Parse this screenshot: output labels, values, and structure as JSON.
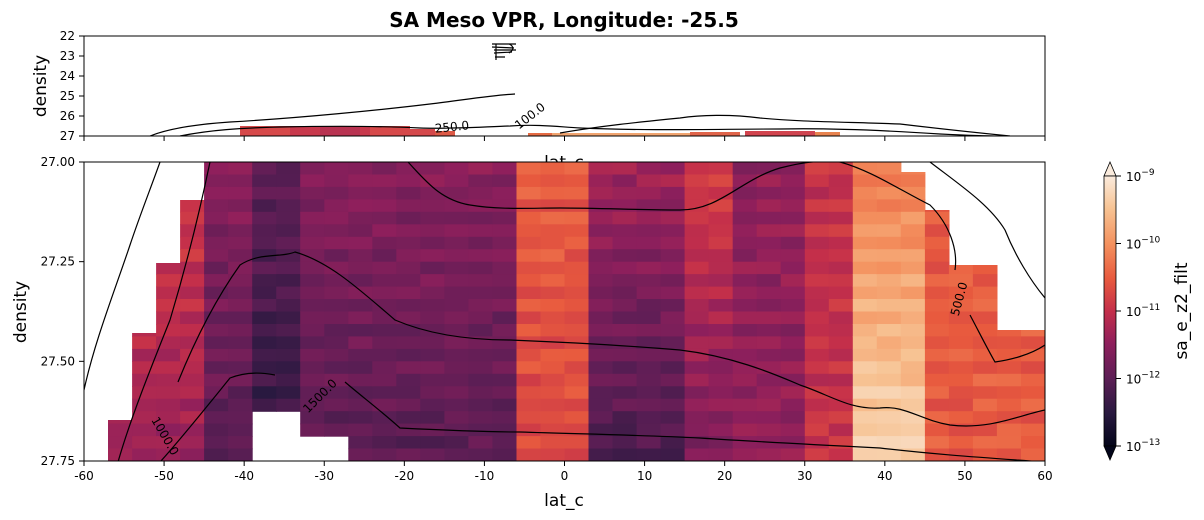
{
  "chart_data": {
    "type": "heatmap",
    "title": "SA Meso VPR, Longitude: -25.5",
    "colormap": "rocket_r (magma-like)",
    "colorbar": {
      "label": "sa_e_z2_filt",
      "scale": "log",
      "range": [
        1e-13,
        1e-09
      ],
      "tick_labels": [
        "10^-13",
        "10^-12",
        "10^-11",
        "10^-10",
        "10^-9"
      ],
      "tick_exponents": [
        -13,
        -12,
        -11,
        -10,
        -9
      ],
      "extend": "both"
    },
    "top_panel": {
      "xlabel": "lat_c",
      "ylabel": "density",
      "xlim": [
        -60,
        60
      ],
      "ylim": [
        27,
        22
      ],
      "yticks": [
        "22",
        "23",
        "24",
        "25",
        "26",
        "27"
      ],
      "contour_labels": [
        "250.0",
        "100.0"
      ]
    },
    "bottom_panel": {
      "xlabel": "lat_c",
      "ylabel": "density",
      "xlim": [
        -60,
        60
      ],
      "ylim": [
        27.75,
        27.0
      ],
      "xticks": [
        "-60",
        "-50",
        "-40",
        "-30",
        "-20",
        "-10",
        "0",
        "10",
        "20",
        "30",
        "40",
        "50",
        "60"
      ],
      "yticks": [
        "27.00",
        "27.25",
        "27.50",
        "27.75"
      ],
      "contour_labels": [
        "500.0",
        "1000.0",
        "1500.0"
      ]
    }
  }
}
